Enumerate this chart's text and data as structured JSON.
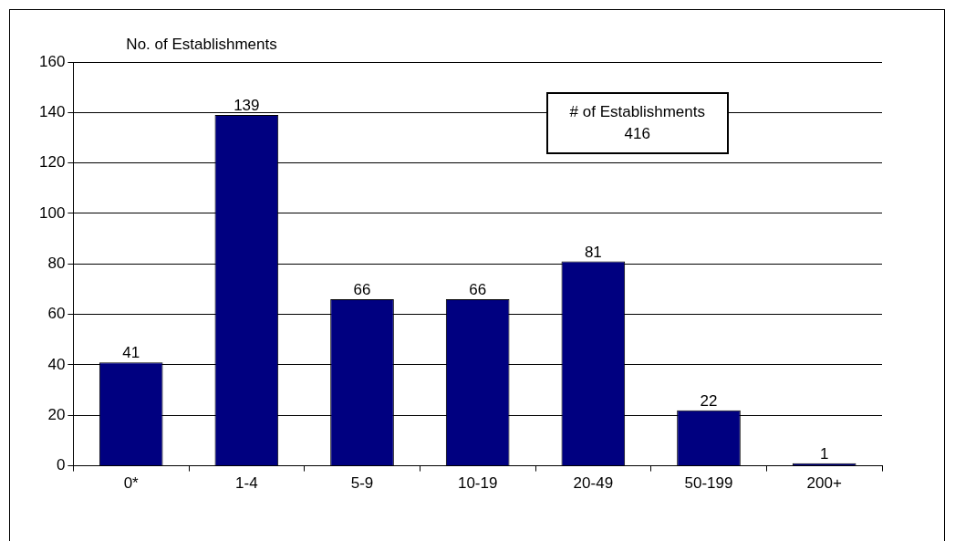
{
  "chart_data": {
    "type": "bar",
    "ylabel": "No. of Establishments",
    "categories": [
      "0*",
      "1-4",
      "5-9",
      "10-19",
      "20-49",
      "50-199",
      "200+"
    ],
    "values": [
      41,
      139,
      66,
      66,
      81,
      22,
      1
    ],
    "color": "#000080",
    "ylim": [
      0,
      160
    ],
    "yticks": [
      0,
      20,
      40,
      60,
      80,
      100,
      120,
      140,
      160
    ],
    "grid": "y",
    "data_labels": true,
    "annotations": [
      "# of Establishments",
      "416"
    ]
  }
}
